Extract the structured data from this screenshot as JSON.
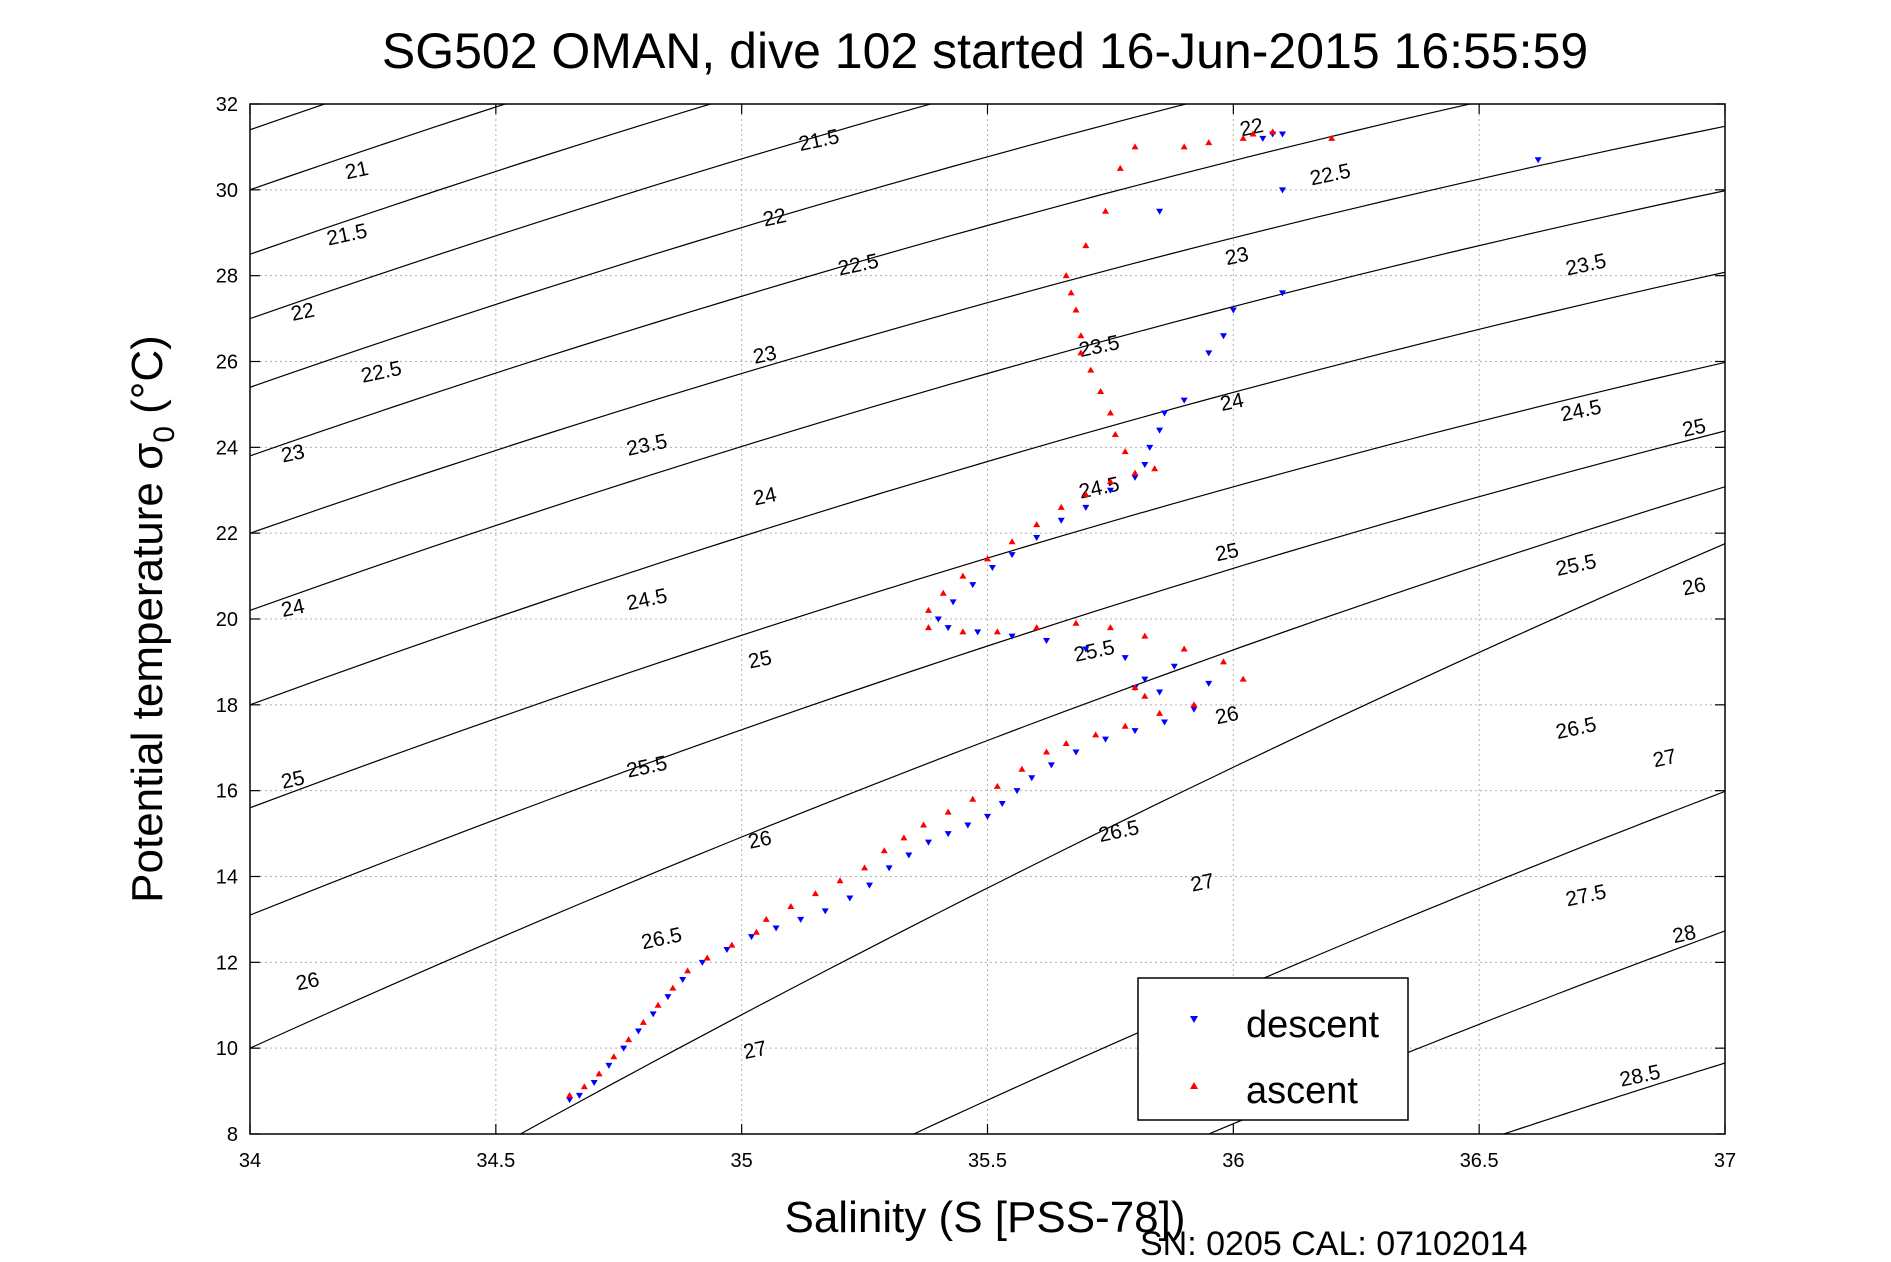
{
  "chart_data": {
    "type": "scatter",
    "title": "SG502 OMAN, dive 102 started 16-Jun-2015 16:55:59",
    "xlabel": "Salinity (S [PSS-78])",
    "ylabel_main": "Potential temperature σ",
    "ylabel_sub": "0",
    "ylabel_unit": " (°C)",
    "footer": "SN: 0205  CAL: 07102014",
    "xlim": [
      34,
      37
    ],
    "ylim": [
      8,
      32
    ],
    "xticks": [
      "34",
      "34.5",
      "35",
      "35.5",
      "36",
      "36.5",
      "37"
    ],
    "yticks": [
      "8",
      "10",
      "12",
      "14",
      "16",
      "18",
      "20",
      "22",
      "24",
      "26",
      "28",
      "30",
      "32"
    ],
    "grid": true,
    "legend_position": "bottom-right",
    "contours": {
      "lines": [
        {
          "s0": 34,
          "t0": 31.4,
          "slope": 4.0
        },
        {
          "s0": 34,
          "t0": 30.0,
          "slope": 4.0
        },
        {
          "s0": 34,
          "t0": 28.5,
          "slope": 4.0
        },
        {
          "s0": 34,
          "t0": 27.0,
          "slope": 4.0
        },
        {
          "s0": 34,
          "t0": 25.4,
          "slope": 4.0
        },
        {
          "s0": 34,
          "t0": 23.8,
          "slope": 4.0
        },
        {
          "s0": 34,
          "t0": 22.0,
          "slope": 4.0
        },
        {
          "s0": 34,
          "t0": 20.2,
          "slope": 4.1
        },
        {
          "s0": 34,
          "t0": 18.0,
          "slope": 4.2
        },
        {
          "s0": 34,
          "t0": 15.6,
          "slope": 4.3
        },
        {
          "s0": 34,
          "t0": 13.1,
          "slope": 4.6
        },
        {
          "s0": 34,
          "t0": 10.0,
          "slope": 5.2
        },
        {
          "s0": 34.55,
          "t0": 8.0,
          "slope": 6.3
        },
        {
          "s0": 35.35,
          "t0": 8.0,
          "slope": 5.3
        },
        {
          "s0": 35.95,
          "t0": 8.0,
          "slope": 4.8
        },
        {
          "s0": 36.55,
          "t0": 8.0,
          "slope": 3.8
        }
      ],
      "labels": [
        {
          "text": "21",
          "s": 34.22,
          "t": 30.3
        },
        {
          "text": "21.5",
          "s": 34.2,
          "t": 28.8
        },
        {
          "text": "22",
          "s": 34.11,
          "t": 27.0
        },
        {
          "text": "22.5",
          "s": 34.27,
          "t": 25.6
        },
        {
          "text": "23",
          "s": 34.09,
          "t": 23.7
        },
        {
          "text": "23.5",
          "s": 34.81,
          "t": 23.9
        },
        {
          "text": "24",
          "s": 34.09,
          "t": 20.1
        },
        {
          "text": "24.5",
          "s": 34.81,
          "t": 20.3
        },
        {
          "text": "25",
          "s": 34.09,
          "t": 16.1
        },
        {
          "text": "25.5",
          "s": 34.81,
          "t": 16.4
        },
        {
          "text": "26",
          "s": 34.12,
          "t": 11.4
        },
        {
          "text": "26.5",
          "s": 34.84,
          "t": 12.4
        },
        {
          "text": "27",
          "s": 35.03,
          "t": 9.8
        },
        {
          "text": "21.5",
          "s": 35.16,
          "t": 31.0
        },
        {
          "text": "22",
          "s": 35.07,
          "t": 29.2
        },
        {
          "text": "22.5",
          "s": 35.24,
          "t": 28.1
        },
        {
          "text": "23",
          "s": 35.05,
          "t": 26.0
        },
        {
          "text": "24",
          "s": 35.05,
          "t": 22.7
        },
        {
          "text": "25",
          "s": 35.04,
          "t": 18.9
        },
        {
          "text": "26",
          "s": 35.04,
          "t": 14.7
        },
        {
          "text": "23.5",
          "s": 35.73,
          "t": 26.2
        },
        {
          "text": "24.5",
          "s": 35.73,
          "t": 22.9
        },
        {
          "text": "25.5",
          "s": 35.72,
          "t": 19.1
        },
        {
          "text": "26.5",
          "s": 35.77,
          "t": 14.9
        },
        {
          "text": "22",
          "s": 36.04,
          "t": 31.3
        },
        {
          "text": "22.5",
          "s": 36.2,
          "t": 30.2
        },
        {
          "text": "23",
          "s": 36.01,
          "t": 28.3
        },
        {
          "text": "24",
          "s": 36.0,
          "t": 24.9
        },
        {
          "text": "25",
          "s": 35.99,
          "t": 21.4
        },
        {
          "text": "26",
          "s": 35.99,
          "t": 17.6
        },
        {
          "text": "27",
          "s": 35.94,
          "t": 13.7
        },
        {
          "text": "23.5",
          "s": 36.72,
          "t": 28.1
        },
        {
          "text": "24.5",
          "s": 36.71,
          "t": 24.7
        },
        {
          "text": "25.5",
          "s": 36.7,
          "t": 21.1
        },
        {
          "text": "26.5",
          "s": 36.7,
          "t": 17.3
        },
        {
          "text": "27.5",
          "s": 36.72,
          "t": 13.4
        },
        {
          "text": "25",
          "s": 36.94,
          "t": 24.3
        },
        {
          "text": "26",
          "s": 36.94,
          "t": 20.6
        },
        {
          "text": "27",
          "s": 36.88,
          "t": 16.6
        },
        {
          "text": "28",
          "s": 36.92,
          "t": 12.5
        },
        {
          "text": "28.5",
          "s": 36.83,
          "t": 9.2
        },
        {
          "text": "28",
          "s": 36.04,
          "t": 8.5
        }
      ]
    },
    "series": [
      {
        "name": "descent",
        "color": "#0000ff",
        "marker": "triangle-down",
        "points": [
          [
            34.65,
            8.8
          ],
          [
            34.67,
            8.9
          ],
          [
            34.7,
            9.2
          ],
          [
            34.73,
            9.6
          ],
          [
            34.76,
            10.0
          ],
          [
            34.79,
            10.4
          ],
          [
            34.82,
            10.8
          ],
          [
            34.85,
            11.2
          ],
          [
            34.88,
            11.6
          ],
          [
            34.92,
            12.0
          ],
          [
            34.97,
            12.3
          ],
          [
            35.02,
            12.6
          ],
          [
            35.07,
            12.8
          ],
          [
            35.12,
            13.0
          ],
          [
            35.17,
            13.2
          ],
          [
            35.22,
            13.5
          ],
          [
            35.26,
            13.8
          ],
          [
            35.3,
            14.2
          ],
          [
            35.34,
            14.5
          ],
          [
            35.38,
            14.8
          ],
          [
            35.42,
            15.0
          ],
          [
            35.46,
            15.2
          ],
          [
            35.5,
            15.4
          ],
          [
            35.53,
            15.7
          ],
          [
            35.56,
            16.0
          ],
          [
            35.59,
            16.3
          ],
          [
            35.63,
            16.6
          ],
          [
            35.68,
            16.9
          ],
          [
            35.74,
            17.2
          ],
          [
            35.8,
            17.4
          ],
          [
            35.86,
            17.6
          ],
          [
            35.92,
            17.9
          ],
          [
            35.85,
            18.3
          ],
          [
            35.8,
            18.4
          ],
          [
            35.82,
            18.6
          ],
          [
            35.95,
            18.5
          ],
          [
            35.88,
            18.9
          ],
          [
            35.78,
            19.1
          ],
          [
            35.7,
            19.3
          ],
          [
            35.62,
            19.5
          ],
          [
            35.55,
            19.6
          ],
          [
            35.48,
            19.7
          ],
          [
            35.42,
            19.8
          ],
          [
            35.4,
            20.0
          ],
          [
            35.43,
            20.4
          ],
          [
            35.47,
            20.8
          ],
          [
            35.51,
            21.2
          ],
          [
            35.55,
            21.5
          ],
          [
            35.6,
            21.9
          ],
          [
            35.65,
            22.3
          ],
          [
            35.7,
            22.6
          ],
          [
            35.75,
            23.0
          ],
          [
            35.8,
            23.3
          ],
          [
            35.82,
            23.6
          ],
          [
            35.83,
            24.0
          ],
          [
            35.85,
            24.4
          ],
          [
            35.86,
            24.8
          ],
          [
            35.9,
            25.1
          ],
          [
            35.95,
            26.2
          ],
          [
            35.98,
            26.6
          ],
          [
            36.0,
            27.2
          ],
          [
            36.1,
            27.6
          ],
          [
            35.85,
            29.5
          ],
          [
            36.06,
            31.2
          ],
          [
            36.08,
            31.3
          ],
          [
            36.1,
            31.3
          ],
          [
            36.1,
            30.0
          ],
          [
            36.62,
            30.7
          ]
        ]
      },
      {
        "name": "ascent",
        "color": "#ff0000",
        "marker": "triangle-up",
        "points": [
          [
            34.65,
            8.9
          ],
          [
            34.68,
            9.1
          ],
          [
            34.71,
            9.4
          ],
          [
            34.74,
            9.8
          ],
          [
            34.77,
            10.2
          ],
          [
            34.8,
            10.6
          ],
          [
            34.83,
            11.0
          ],
          [
            34.86,
            11.4
          ],
          [
            34.89,
            11.8
          ],
          [
            34.93,
            12.1
          ],
          [
            34.98,
            12.4
          ],
          [
            35.03,
            12.7
          ],
          [
            35.05,
            13.0
          ],
          [
            35.1,
            13.3
          ],
          [
            35.15,
            13.6
          ],
          [
            35.2,
            13.9
          ],
          [
            35.25,
            14.2
          ],
          [
            35.29,
            14.6
          ],
          [
            35.33,
            14.9
          ],
          [
            35.37,
            15.2
          ],
          [
            35.42,
            15.5
          ],
          [
            35.47,
            15.8
          ],
          [
            35.52,
            16.1
          ],
          [
            35.57,
            16.5
          ],
          [
            35.62,
            16.9
          ],
          [
            35.66,
            17.1
          ],
          [
            35.72,
            17.3
          ],
          [
            35.78,
            17.5
          ],
          [
            35.85,
            17.8
          ],
          [
            35.92,
            18.0
          ],
          [
            35.82,
            18.2
          ],
          [
            35.8,
            18.4
          ],
          [
            36.02,
            18.6
          ],
          [
            35.98,
            19.0
          ],
          [
            35.9,
            19.3
          ],
          [
            35.82,
            19.6
          ],
          [
            35.75,
            19.8
          ],
          [
            35.68,
            19.9
          ],
          [
            35.6,
            19.8
          ],
          [
            35.52,
            19.7
          ],
          [
            35.45,
            19.7
          ],
          [
            35.38,
            19.8
          ],
          [
            35.38,
            20.2
          ],
          [
            35.41,
            20.6
          ],
          [
            35.45,
            21.0
          ],
          [
            35.5,
            21.4
          ],
          [
            35.55,
            21.8
          ],
          [
            35.6,
            22.2
          ],
          [
            35.65,
            22.6
          ],
          [
            35.7,
            22.9
          ],
          [
            35.75,
            23.2
          ],
          [
            35.8,
            23.4
          ],
          [
            35.84,
            23.5
          ],
          [
            35.78,
            23.9
          ],
          [
            35.76,
            24.3
          ],
          [
            35.75,
            24.8
          ],
          [
            35.73,
            25.3
          ],
          [
            35.71,
            25.8
          ],
          [
            35.69,
            26.2
          ],
          [
            35.69,
            26.6
          ],
          [
            35.68,
            27.2
          ],
          [
            35.67,
            27.6
          ],
          [
            35.66,
            28.0
          ],
          [
            35.7,
            28.7
          ],
          [
            35.74,
            29.5
          ],
          [
            35.77,
            30.5
          ],
          [
            35.8,
            31.0
          ],
          [
            35.9,
            31.0
          ],
          [
            35.95,
            31.1
          ],
          [
            36.02,
            31.2
          ],
          [
            36.04,
            31.3
          ],
          [
            36.08,
            31.35
          ],
          [
            36.2,
            31.2
          ]
        ]
      }
    ]
  }
}
